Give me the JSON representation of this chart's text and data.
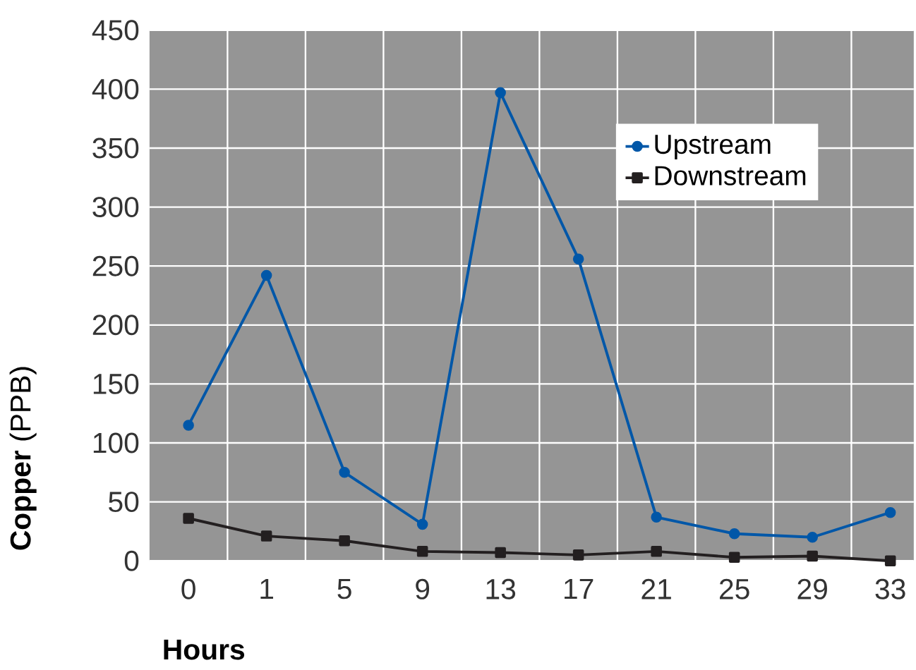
{
  "chart_data": {
    "type": "line",
    "xlabel": "Hours",
    "ylabel": "**Copper** (PPB)",
    "categories": [
      "0",
      "1",
      "5",
      "9",
      "13",
      "17",
      "21",
      "25",
      "29",
      "33"
    ],
    "series": [
      {
        "name": "Upstream",
        "color": "#0057a8",
        "marker": "circle",
        "values": [
          115,
          242,
          75,
          31,
          397,
          256,
          37,
          23,
          20,
          41
        ]
      },
      {
        "name": "Downstream",
        "color": "#231f20",
        "marker": "square",
        "values": [
          36,
          21,
          17,
          8,
          7,
          5,
          8,
          3,
          4,
          0
        ]
      }
    ],
    "ylim": [
      0,
      450
    ],
    "yticks": [
      0,
      50,
      100,
      150,
      200,
      250,
      300,
      350,
      400,
      450
    ],
    "grid": true,
    "legend": "right",
    "line_style": "solid"
  }
}
